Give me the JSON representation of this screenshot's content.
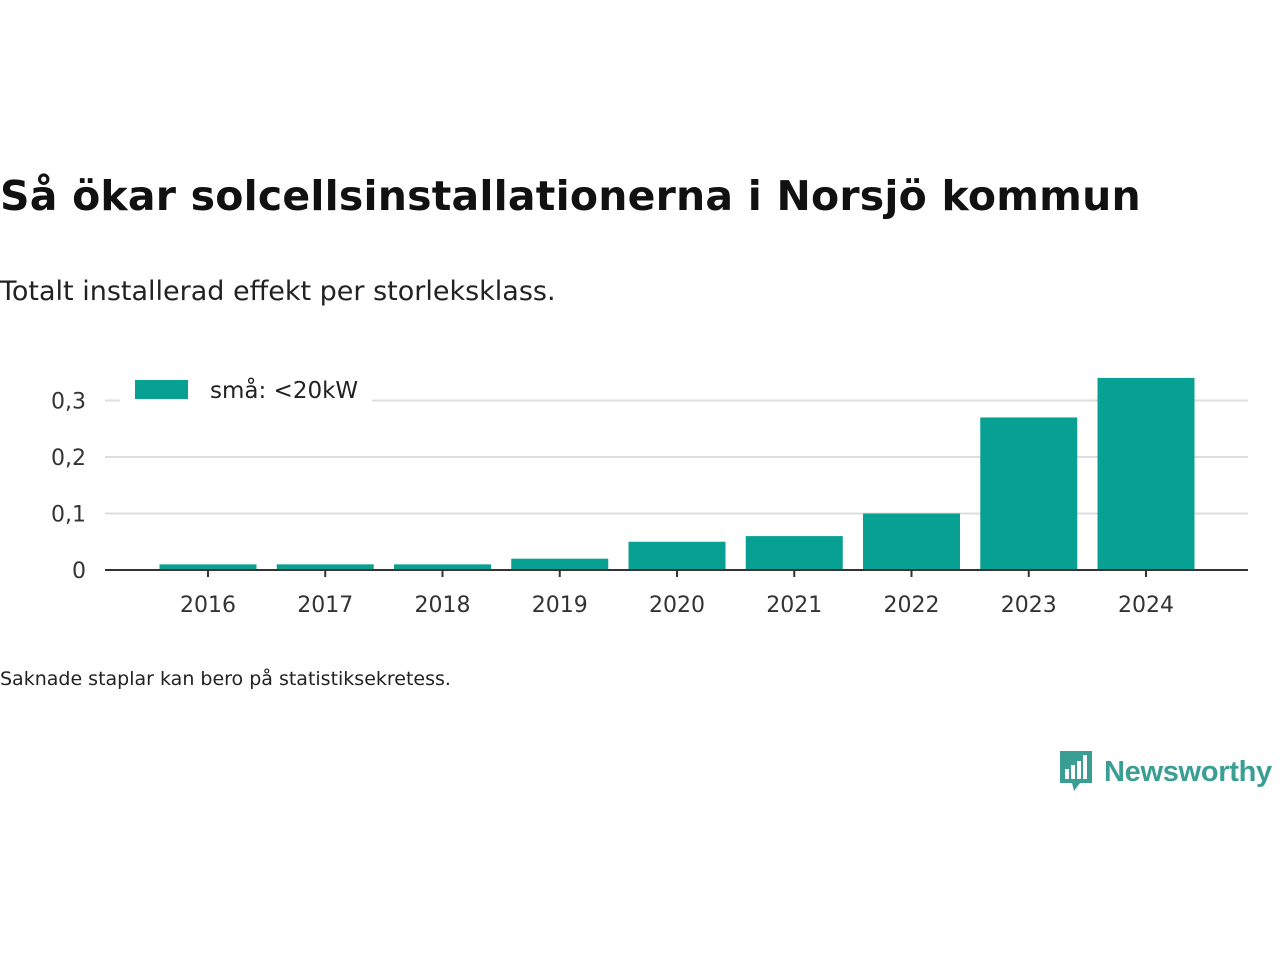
{
  "title": "Så ökar solcellsinstallationerna i Norsjö kommun",
  "subtitle": "Totalt installerad effekt per storleksklass.",
  "note": "Saknade staplar kan bero på statistiksekretess.",
  "brand": {
    "name": "Newsworthy",
    "icon": "bar-chart-speech-bubble-icon",
    "color": "#3a9e95"
  },
  "chart_data": {
    "type": "bar",
    "categories": [
      "2016",
      "2017",
      "2018",
      "2019",
      "2020",
      "2021",
      "2022",
      "2023",
      "2024"
    ],
    "series": [
      {
        "name": "små: <20kW",
        "values": [
          0.01,
          0.01,
          0.01,
          0.02,
          0.05,
          0.06,
          0.1,
          0.27,
          0.34
        ],
        "color": "#08a093"
      }
    ],
    "yticks": [
      "0",
      "0,1",
      "0,2",
      "0,3"
    ],
    "ytick_values": [
      0,
      0.1,
      0.2,
      0.3
    ],
    "ylim": [
      0,
      0.34
    ],
    "grid": true,
    "legend_position": "top-left",
    "gridline_color": "#dddddd",
    "axis_color": "#333333"
  }
}
